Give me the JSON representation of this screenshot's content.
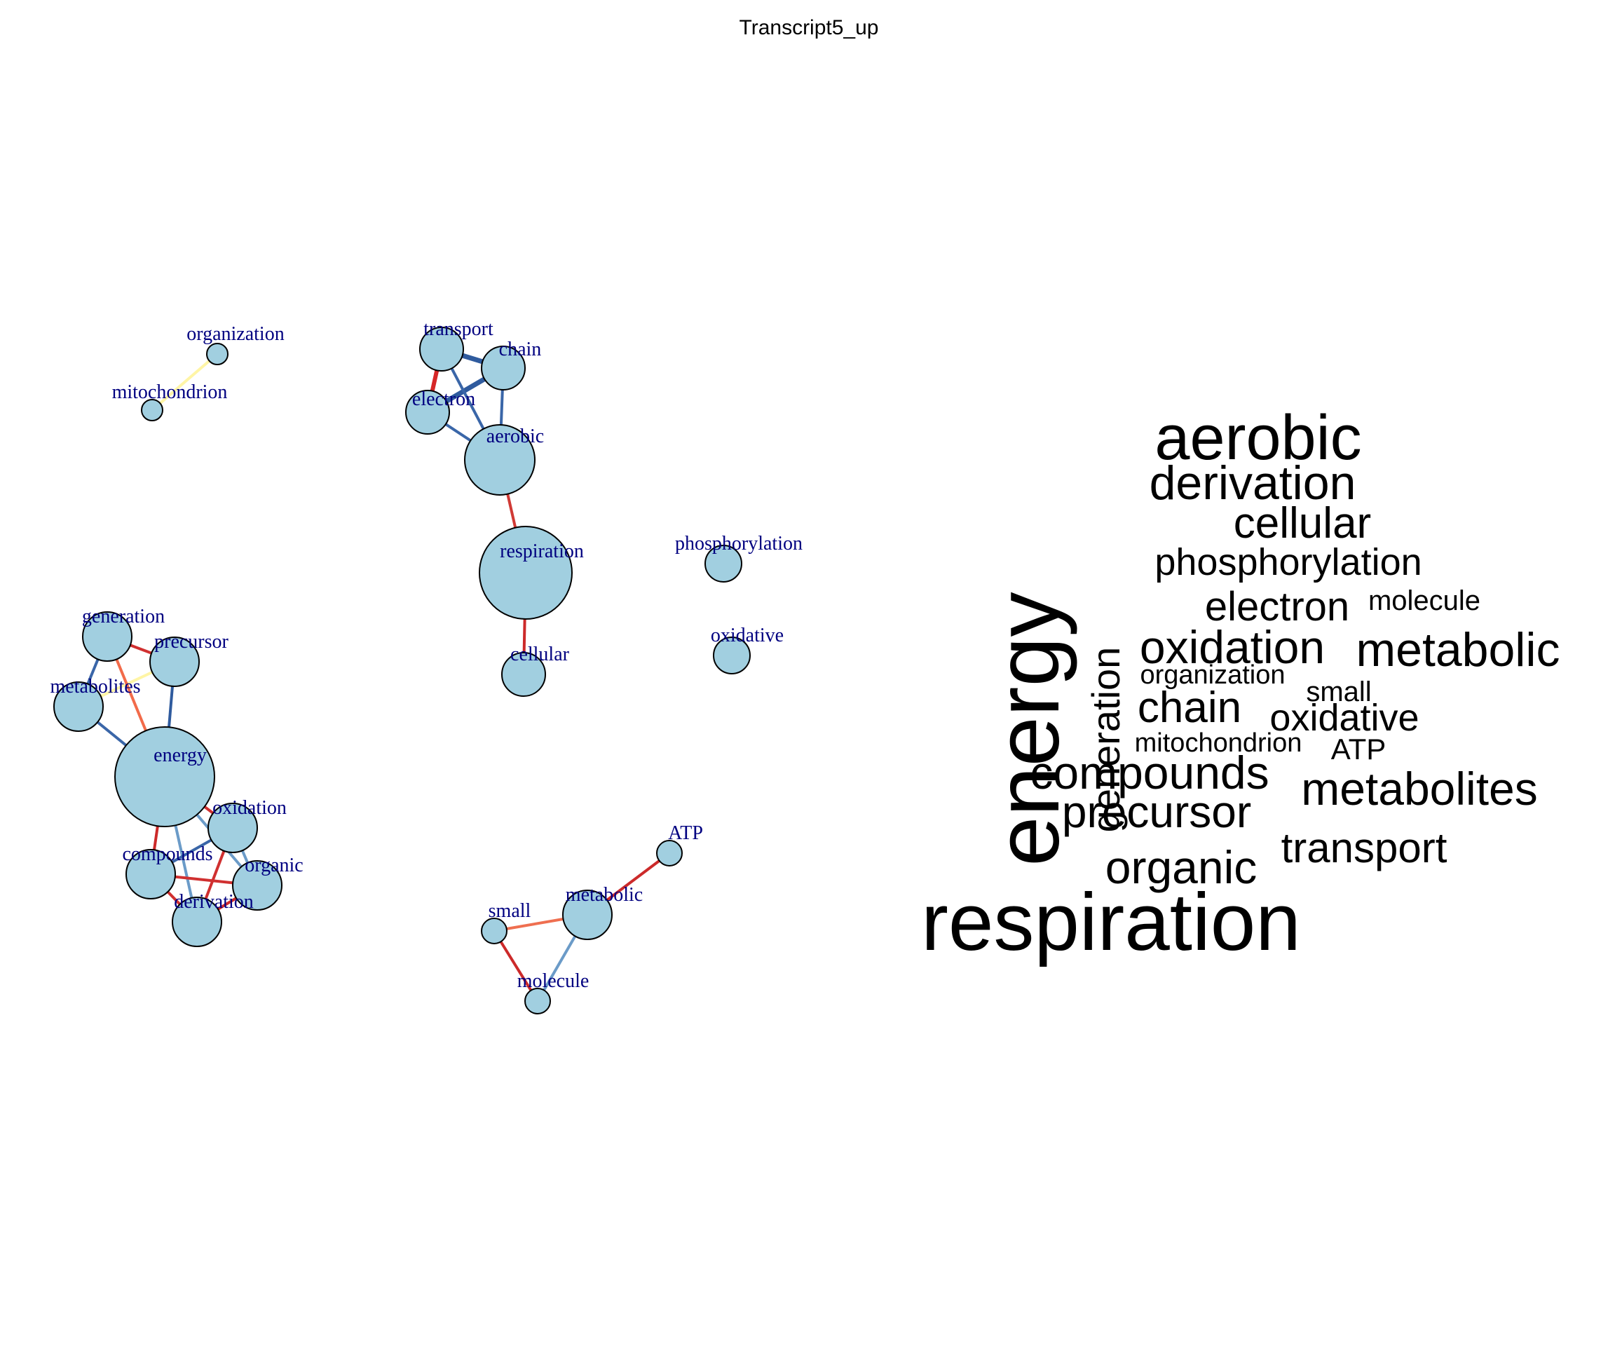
{
  "title": "Transcript5_up",
  "colors": {
    "node_fill": "#a1cfe0",
    "node_stroke": "#000000",
    "label_color": "#000080",
    "background": "#ffffff"
  },
  "network": {
    "nodes": [
      {
        "id": "organization",
        "label": "organization"
      },
      {
        "id": "mitochondrion",
        "label": "mitochondrion"
      },
      {
        "id": "transport",
        "label": "transport"
      },
      {
        "id": "chain",
        "label": "chain"
      },
      {
        "id": "electron",
        "label": "electron"
      },
      {
        "id": "aerobic",
        "label": "aerobic"
      },
      {
        "id": "respiration",
        "label": "respiration"
      },
      {
        "id": "cellular",
        "label": "cellular"
      },
      {
        "id": "phosphorylation",
        "label": "phosphorylation"
      },
      {
        "id": "oxidative",
        "label": "oxidative"
      },
      {
        "id": "generation",
        "label": "generation"
      },
      {
        "id": "precursor",
        "label": "precursor"
      },
      {
        "id": "metabolites",
        "label": "metabolites"
      },
      {
        "id": "energy",
        "label": "energy"
      },
      {
        "id": "oxidation",
        "label": "oxidation"
      },
      {
        "id": "compounds",
        "label": "compounds"
      },
      {
        "id": "organic",
        "label": "organic"
      },
      {
        "id": "derivation",
        "label": "derivation"
      },
      {
        "id": "ATP",
        "label": "ATP"
      },
      {
        "id": "metabolic",
        "label": "metabolic"
      },
      {
        "id": "small",
        "label": "small"
      },
      {
        "id": "molecule",
        "label": "molecule"
      }
    ],
    "edges": [
      {
        "source": "organization",
        "target": "mitochondrion",
        "color": "#fff5a6"
      },
      {
        "source": "transport",
        "target": "electron",
        "color": "#d62728"
      },
      {
        "source": "transport",
        "target": "chain",
        "color": "#2f5b9e"
      },
      {
        "source": "electron",
        "target": "chain",
        "color": "#2f5b9e"
      },
      {
        "source": "transport",
        "target": "aerobic",
        "color": "#3a66a8"
      },
      {
        "source": "chain",
        "target": "aerobic",
        "color": "#3a66a8"
      },
      {
        "source": "electron",
        "target": "aerobic",
        "color": "#3a66a8"
      },
      {
        "source": "aerobic",
        "target": "respiration",
        "color": "#d03a35"
      },
      {
        "source": "respiration",
        "target": "cellular",
        "color": "#cc2a2a"
      },
      {
        "source": "generation",
        "target": "precursor",
        "color": "#d03030"
      },
      {
        "source": "generation",
        "target": "metabolites",
        "color": "#3a66a8"
      },
      {
        "source": "metabolites",
        "target": "precursor",
        "color": "#fff5a6"
      },
      {
        "source": "generation",
        "target": "energy",
        "color": "#f26b4a"
      },
      {
        "source": "precursor",
        "target": "energy",
        "color": "#2f5b9e"
      },
      {
        "source": "metabolites",
        "target": "energy",
        "color": "#3a66a8"
      },
      {
        "source": "energy",
        "target": "oxidation",
        "color": "#d03030"
      },
      {
        "source": "energy",
        "target": "compounds",
        "color": "#cc2a2a"
      },
      {
        "source": "energy",
        "target": "organic",
        "color": "#6b9bc8"
      },
      {
        "source": "energy",
        "target": "derivation",
        "color": "#6b9bc8"
      },
      {
        "source": "oxidation",
        "target": "compounds",
        "color": "#3a66a8"
      },
      {
        "source": "oxidation",
        "target": "organic",
        "color": "#6b9bc8"
      },
      {
        "source": "oxidation",
        "target": "derivation",
        "color": "#d03030"
      },
      {
        "source": "compounds",
        "target": "organic",
        "color": "#d03030"
      },
      {
        "source": "compounds",
        "target": "derivation",
        "color": "#d03030"
      },
      {
        "source": "organic",
        "target": "derivation",
        "color": "#cc2a2a"
      },
      {
        "source": "ATP",
        "target": "metabolic",
        "color": "#cc2a2a"
      },
      {
        "source": "small",
        "target": "metabolic",
        "color": "#ef6f50"
      },
      {
        "source": "small",
        "target": "molecule",
        "color": "#cc2a2a"
      },
      {
        "source": "metabolic",
        "target": "molecule",
        "color": "#6b9bc8"
      }
    ]
  },
  "wordcloud": {
    "words": [
      {
        "text": "energy"
      },
      {
        "text": "aerobic"
      },
      {
        "text": "derivation"
      },
      {
        "text": "cellular"
      },
      {
        "text": "generation"
      },
      {
        "text": "phosphorylation"
      },
      {
        "text": "electron"
      },
      {
        "text": "molecule"
      },
      {
        "text": "oxidation"
      },
      {
        "text": "metabolic"
      },
      {
        "text": "organization"
      },
      {
        "text": "small"
      },
      {
        "text": "chain"
      },
      {
        "text": "oxidative"
      },
      {
        "text": "mitochondrion"
      },
      {
        "text": "ATP"
      },
      {
        "text": "compounds"
      },
      {
        "text": "metabolites"
      },
      {
        "text": "precursor"
      },
      {
        "text": "transport"
      },
      {
        "text": "organic"
      },
      {
        "text": "respiration"
      }
    ]
  }
}
